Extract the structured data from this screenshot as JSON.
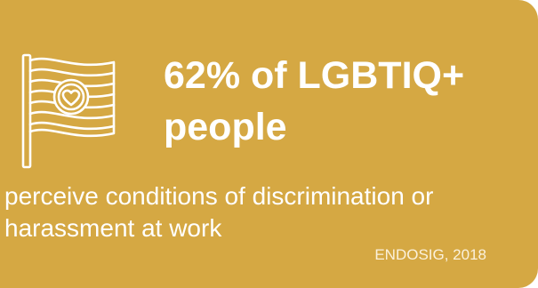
{
  "card": {
    "background_color": "#D5A843",
    "text_color": "#ffffff",
    "icon": "pride-flag-heart-icon",
    "headline_line1": "62% of LGBTIQ+",
    "headline_line2": "people",
    "description_line1": "perceive conditions of discrimination or",
    "description_line2": "harassment at work",
    "source": "ENDOSIG, 2018"
  }
}
